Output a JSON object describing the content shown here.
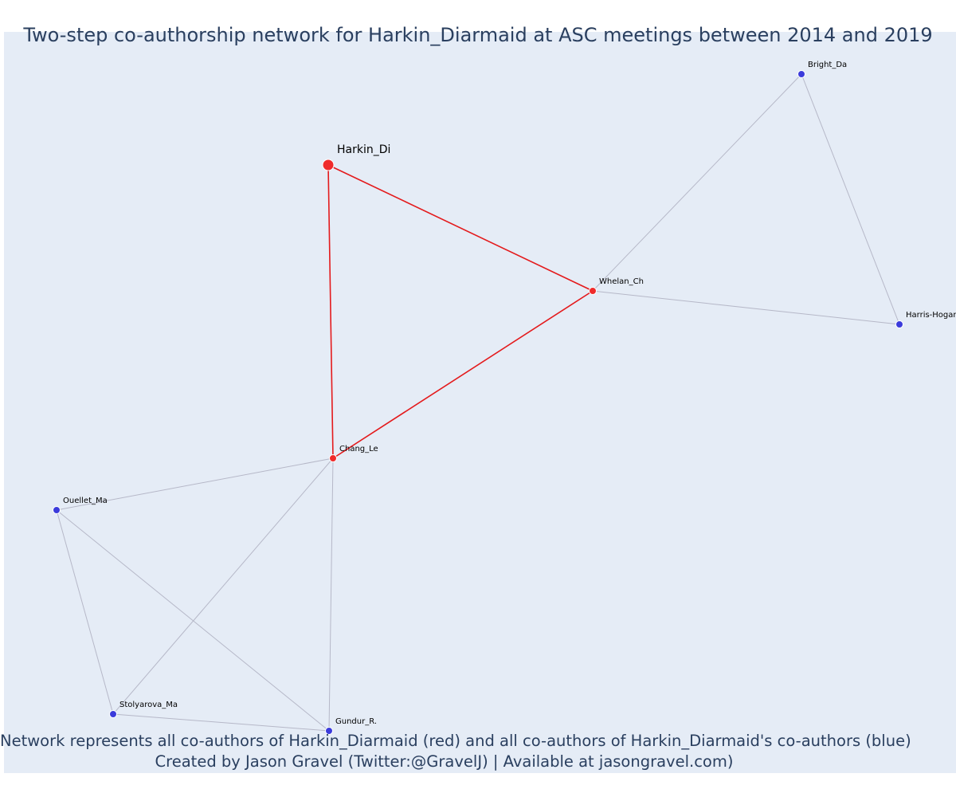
{
  "title": "Two-step co-authorship network for Harkin_Diarmaid at ASC meetings between 2014 and 2019",
  "captions": {
    "line1": "Network represents all co-authors of Harkin_Diarmaid (red) and all co-authors of Harkin_Diarmaid's co-authors (blue)",
    "line2": "Created by Jason Gravel (Twitter:@GravelJ) | Available at jasongravel.com)"
  },
  "colors": {
    "plot_bg": "#e5ecf6",
    "focal": "#ef2b2b",
    "first_step": "#ef2b2b",
    "second_step": "#3b3bdb",
    "edge_focal": "#e41a1c",
    "edge_other": "#b6b8c8"
  },
  "nodes": [
    {
      "id": "Harkin_Di",
      "label": "Harkin_Di",
      "group": "focal"
    },
    {
      "id": "Whelan_Ch",
      "label": "Whelan_Ch",
      "group": "first"
    },
    {
      "id": "Chang_Le",
      "label": "Chang_Le",
      "group": "first"
    },
    {
      "id": "Bright_Da",
      "label": "Bright_Da",
      "group": "second"
    },
    {
      "id": "Harris-Hogan",
      "label": "Harris-Hogan",
      "group": "second"
    },
    {
      "id": "Ouellet_Ma",
      "label": "Ouellet_Ma",
      "group": "second"
    },
    {
      "id": "Stolyarova_Ma",
      "label": "Stolyarova_Ma",
      "group": "second"
    },
    {
      "id": "Gundur_R.",
      "label": "Gundur_R.",
      "group": "second"
    }
  ],
  "edges": [
    {
      "source": "Harkin_Di",
      "target": "Whelan_Ch",
      "type": "focal"
    },
    {
      "source": "Harkin_Di",
      "target": "Chang_Le",
      "type": "focal"
    },
    {
      "source": "Whelan_Ch",
      "target": "Chang_Le",
      "type": "focal"
    },
    {
      "source": "Whelan_Ch",
      "target": "Bright_Da",
      "type": "other"
    },
    {
      "source": "Whelan_Ch",
      "target": "Harris-Hogan",
      "type": "other"
    },
    {
      "source": "Bright_Da",
      "target": "Harris-Hogan",
      "type": "other"
    },
    {
      "source": "Chang_Le",
      "target": "Ouellet_Ma",
      "type": "other"
    },
    {
      "source": "Chang_Le",
      "target": "Stolyarova_Ma",
      "type": "other"
    },
    {
      "source": "Chang_Le",
      "target": "Gundur_R.",
      "type": "other"
    },
    {
      "source": "Ouellet_Ma",
      "target": "Stolyarova_Ma",
      "type": "other"
    },
    {
      "source": "Ouellet_Ma",
      "target": "Gundur_R.",
      "type": "other"
    },
    {
      "source": "Stolyarova_Ma",
      "target": "Gundur_R.",
      "type": "other"
    }
  ]
}
